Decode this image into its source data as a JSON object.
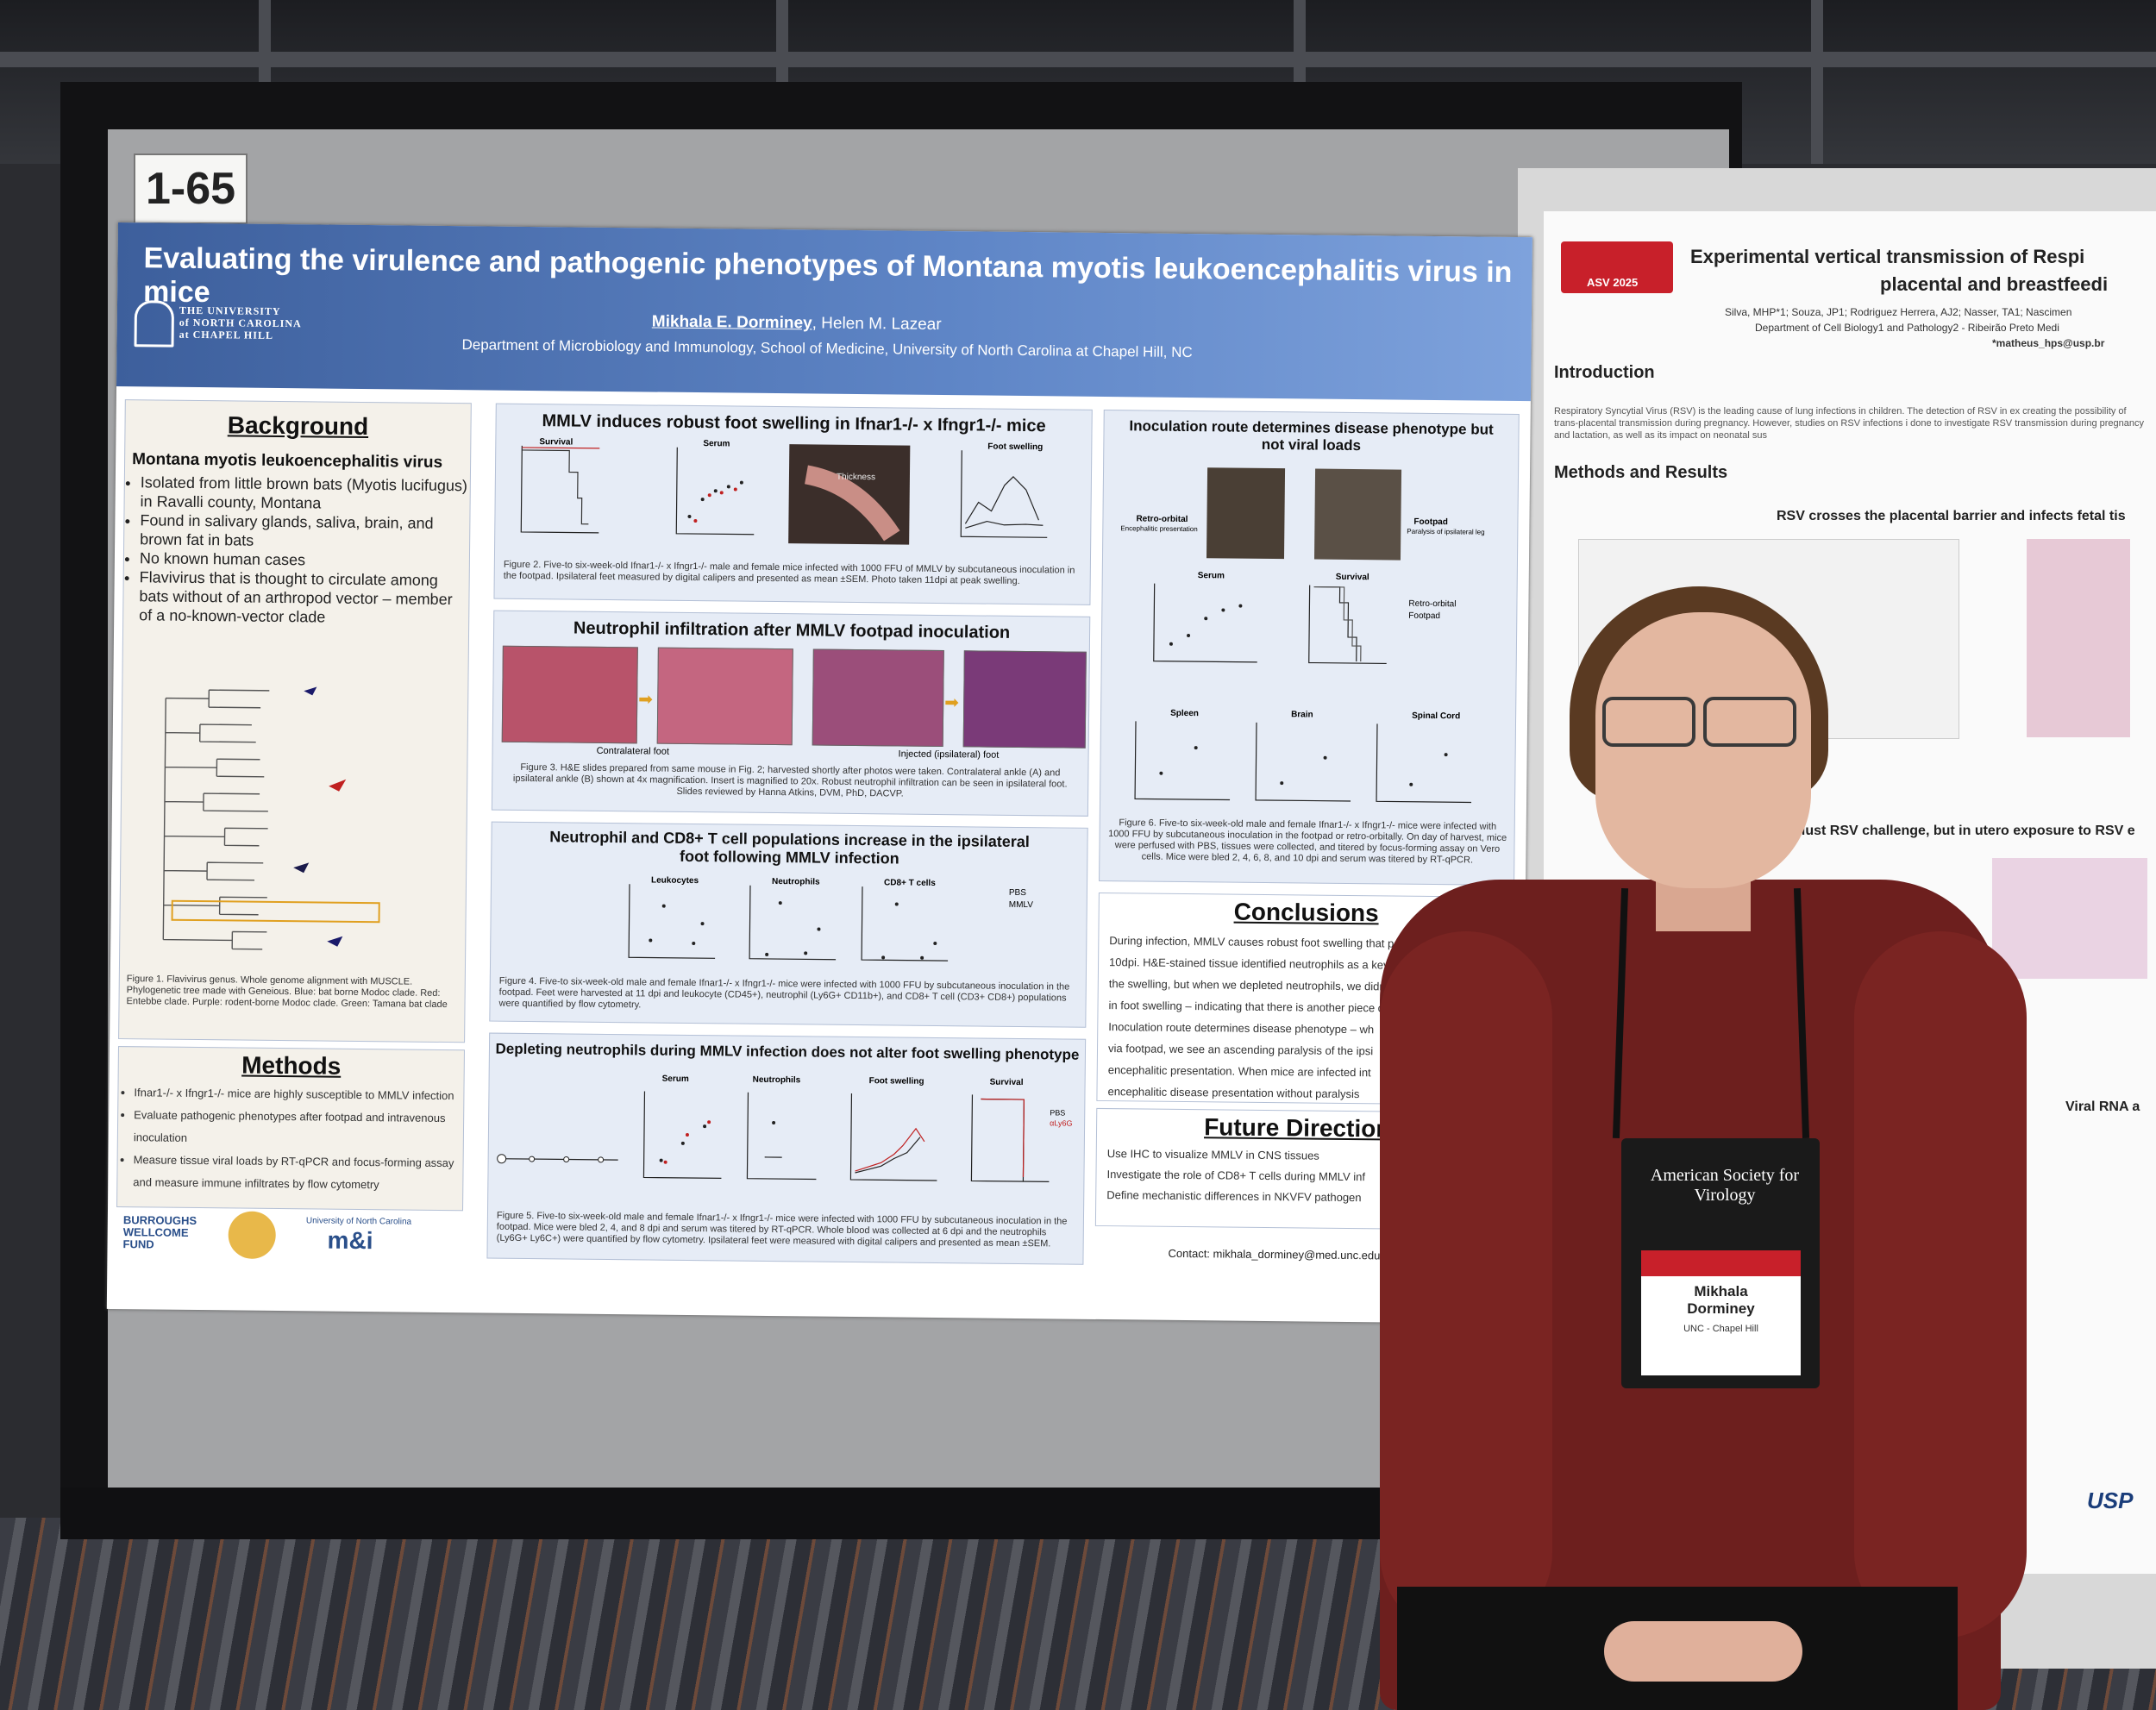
{
  "board_number": "1-65",
  "poster": {
    "title": "Evaluating the virulence and pathogenic phenotypes of Montana myotis leukoencephalitis virus in mice",
    "authors_first": "Mikhala E. Dorminey",
    "authors_rest": ", Helen M. Lazear",
    "department": "Department of Microbiology and Immunology, School of Medicine, University of North Carolina at Chapel Hill, NC",
    "university_lines": [
      "THE UNIVERSITY",
      "of NORTH CAROLINA",
      "at CHAPEL HILL"
    ],
    "background": {
      "heading": "Background",
      "subheading": "Montana myotis leukoencephalitis virus",
      "bullets": [
        "Isolated from little brown bats (Myotis lucifugus) in Ravalli county, Montana",
        "Found in salivary glands, saliva, brain, and brown fat in bats",
        "No known human cases",
        "Flavivirus that is thought to circulate among bats without of an arthropod vector – member of a no-known-vector clade"
      ],
      "fig1_caption": "Figure 1. Flavivirus genus. Whole genome alignment with MUSCLE. Phylogenetic tree made with Geneious. Blue: bat borne Modoc clade. Red: Entebbe clade. Purple: rodent-borne Modoc clade. Green: Tamana bat clade"
    },
    "methods": {
      "heading": "Methods",
      "bullets": [
        "Ifnar1-/- x Ifngr1-/- mice are highly susceptible to MMLV infection",
        "Evaluate pathogenic phenotypes after footpad and intravenous inoculation",
        "Measure tissue viral loads by RT-qPCR and focus-forming assay and measure immune infiltrates by flow cytometry"
      ]
    },
    "fig2": {
      "title": "MMLV induces robust foot swelling in Ifnar1-/- x Ifngr1-/- mice",
      "panels": [
        "Survival",
        "Serum",
        "Thickness",
        "Foot swelling"
      ],
      "caption": "Figure 2. Five-to six-week-old Ifnar1-/- x Ifngr1-/- male and female mice infected with 1000 FFU of MMLV by subcutaneous inoculation in the footpad. Ipsilateral feet measured by digital calipers and presented as mean ±SEM. Photo taken 11dpi at peak swelling."
    },
    "fig3": {
      "title": "Neutrophil infiltration after MMLV footpad inoculation",
      "label_contra": "Contralateral foot",
      "label_ipsi": "Injected (ipsilateral) foot",
      "caption": "Figure 3. H&E slides prepared from same mouse in Fig. 2; harvested shortly after photos were taken. Contralateral ankle (A) and ipsilateral ankle (B) shown at 4x magnification. Insert is magnified to 20x. Robust neutrophil infiltration can be seen in ipsilateral foot. Slides reviewed by Hanna Atkins, DVM, PhD, DACVP."
    },
    "fig4": {
      "title": "Neutrophil and CD8+ T cell populations increase in the ipsilateral foot following MMLV infection",
      "panels": [
        "Leukocytes",
        "Neutrophils",
        "CD8+ T cells"
      ],
      "legend": [
        "PBS",
        "MMLV"
      ],
      "caption": "Figure 4. Five-to six-week-old male and female Ifnar1-/- x Ifngr1-/- mice were infected with 1000 FFU by subcutaneous inoculation in the footpad. Feet were harvested at 11 dpi and leukocyte (CD45+), neutrophil (Ly6G+ CD11b+), and CD8+ T cell (CD3+ CD8+) populations were quantified by flow cytometry."
    },
    "fig5": {
      "title": "Depleting neutrophils during MMLV infection does not alter foot swelling phenotype",
      "panels": [
        "Serum",
        "Neutrophils",
        "Foot swelling",
        "Survival"
      ],
      "legend": [
        "PBS",
        "αLy6G"
      ],
      "caption": "Figure 5. Five-to six-week-old male and female Ifnar1-/- x Ifngr1-/- mice were infected with 1000 FFU by subcutaneous inoculation in the footpad. Mice were bled 2, 4, and 8 dpi and serum was titered by RT-qPCR. Whole blood was collected at 6 dpi and the neutrophils (Ly6G+ Ly6C+) were quantified by flow cytometry. Ipsilateral feet were measured with digital calipers and presented as mean ±SEM."
    },
    "fig6": {
      "title": "Inoculation route determines disease phenotype but not viral loads",
      "photo_labels": [
        "Retro-orbital",
        "Footpad"
      ],
      "photo_sub": [
        "Encephalitic presentation",
        "Paralysis of ipsilateral leg"
      ],
      "panels": [
        "Serum",
        "Survival",
        "Spleen",
        "Brain",
        "Spinal Cord"
      ],
      "legend": [
        "Retro-orbital",
        "Footpad"
      ],
      "caption": "Figure 6. Five-to six-week-old male and female Ifnar1-/- x Ifngr1-/- mice were infected with 1000 FFU by subcutaneous inoculation in the footpad or retro-orbitally. On day of harvest, mice were perfused with PBS, tissues were collected, and titered by focus-forming assay on Vero cells. Mice were bled 2, 4, 6, 8, and 10 dpi and serum was titered by RT-qPCR."
    },
    "conclusions": {
      "heading": "Conclusions",
      "bullets": [
        "During infection, MMLV causes robust foot swelling that pe",
        "10dpi. H&E-stained tissue identified neutrophils as a key c",
        "the swelling, but when we depleted neutrophils, we didn't",
        "in foot swelling – indicating that there is another piece c",
        "Inoculation route determines disease phenotype – wh",
        "via footpad, we see an ascending paralysis of the ipsi",
        "encephalitic presentation. When mice are infected int",
        "encephalitic disease presentation without paralysis"
      ]
    },
    "future": {
      "heading": "Future Directions",
      "bullets": [
        "Use IHC to visualize MMLV in CNS tissues",
        "Investigate the role of CD8+ T cells during MMLV inf",
        "Define mechanistic differences in NKVFV pathogen"
      ]
    },
    "contact": "Contact: mikhala_dorminey@med.unc.edu",
    "logos": [
      "BURROUGHS WELLCOME FUND",
      "University of North Carolina",
      "m&i"
    ]
  },
  "right_poster": {
    "title_line1": "Experimental vertical transmission of Respi",
    "title_line2": "placental and breastfeedi",
    "authors": "Silva, MHP*1; Souza, JP1; Rodriguez Herrera, AJ2; Nasser, TA1; Nascimen",
    "dept": "Department of Cell Biology1 and Pathology2 - Ribeirão Preto Medi",
    "email": "*matheus_hps@usp.br",
    "logo": "ASV 2025",
    "intro_heading": "Introduction",
    "intro_text": "Respiratory Syncytial Virus (RSV) is the leading cause of lung infections in children. The detection of RSV in ex creating the possibility of trans-placental transmission during pregnancy. However, studies on RSV infections i done to investigate RSV transmission during pregnancy and lactation, as well as its impact on neonatal sus",
    "methods_heading": "Methods and Results",
    "sub1": "RSV crosses the placental barrier and infects fetal tis",
    "sub2": "alust RSV challenge, but in utero exposure to RSV e",
    "sub3": "Viral RNA a",
    "logo2": "USP"
  },
  "badge": {
    "org": "American Society for Virology",
    "name_line1": "Mikhala",
    "name_line2": "Dorminey",
    "affiliation": "UNC - Chapel Hill"
  }
}
